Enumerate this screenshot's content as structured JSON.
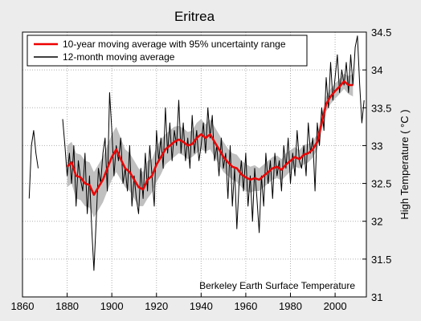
{
  "chart_data": {
    "type": "line",
    "title": "Eritrea",
    "xlabel": "",
    "ylabel": "High Temperature ( °C )",
    "xlim": [
      1860,
      2014
    ],
    "ylim": [
      31,
      34.5
    ],
    "x_ticks": [
      1860,
      1880,
      1900,
      1920,
      1940,
      1960,
      1980,
      2000
    ],
    "y_ticks": [
      31,
      31.5,
      32,
      32.5,
      33,
      33.5,
      34,
      34.5
    ],
    "y_tick_labels": [
      "31",
      "31.5",
      "32",
      "32.5",
      "33",
      "33.5",
      "34",
      "34.5"
    ],
    "grid": true,
    "legend_position": "top-left",
    "annotation": "Berkeley Earth Surface Temperature",
    "colors": {
      "moving_avg_10yr": "#ee0000",
      "uncertainty": "#c0c0c0",
      "moving_avg_12mo": "#000000",
      "background": "#ececec",
      "plot_bg": "#ffffff"
    },
    "series": [
      {
        "name": "10-year moving average with 95% uncertainty range",
        "x": [
          1880,
          1882,
          1884,
          1886,
          1888,
          1890,
          1892,
          1894,
          1896,
          1898,
          1900,
          1902,
          1904,
          1906,
          1908,
          1910,
          1912,
          1914,
          1916,
          1918,
          1920,
          1922,
          1924,
          1926,
          1928,
          1930,
          1932,
          1934,
          1936,
          1938,
          1940,
          1942,
          1944,
          1946,
          1948,
          1950,
          1952,
          1954,
          1956,
          1958,
          1960,
          1962,
          1964,
          1966,
          1968,
          1970,
          1972,
          1974,
          1976,
          1978,
          1980,
          1982,
          1984,
          1986,
          1988,
          1990,
          1992,
          1994,
          1996,
          1998,
          2000,
          2002,
          2004,
          2006,
          2008
        ],
        "values": [
          32.72,
          32.78,
          32.6,
          32.58,
          32.5,
          32.48,
          32.35,
          32.45,
          32.55,
          32.7,
          32.85,
          32.95,
          32.82,
          32.7,
          32.65,
          32.55,
          32.45,
          32.42,
          32.55,
          32.6,
          32.75,
          32.85,
          32.95,
          33.0,
          33.05,
          33.08,
          33.05,
          33.0,
          33.02,
          33.1,
          33.15,
          33.1,
          33.15,
          33.05,
          32.95,
          32.85,
          32.78,
          32.72,
          32.7,
          32.62,
          32.58,
          32.55,
          32.57,
          32.55,
          32.6,
          32.65,
          32.7,
          32.72,
          32.68,
          32.75,
          32.8,
          32.85,
          32.82,
          32.88,
          32.9,
          32.95,
          33.05,
          33.3,
          33.55,
          33.65,
          33.72,
          33.78,
          33.85,
          33.8,
          33.8
        ],
        "lower": [
          32.45,
          32.5,
          32.3,
          32.28,
          32.2,
          32.18,
          32.05,
          32.15,
          32.25,
          32.4,
          32.55,
          32.65,
          32.55,
          32.45,
          32.4,
          32.3,
          32.2,
          32.2,
          32.3,
          32.38,
          32.52,
          32.62,
          32.75,
          32.8,
          32.85,
          32.9,
          32.87,
          32.82,
          32.85,
          32.9,
          32.95,
          32.92,
          32.95,
          32.85,
          32.75,
          32.65,
          32.6,
          32.55,
          32.52,
          32.45,
          32.4,
          32.38,
          32.4,
          32.4,
          32.45,
          32.5,
          32.55,
          32.57,
          32.54,
          32.6,
          32.66,
          32.72,
          32.7,
          32.75,
          32.78,
          32.84,
          32.95,
          33.2,
          33.45,
          33.55,
          33.62,
          33.68,
          33.75,
          33.68,
          33.65
        ],
        "upper": [
          33.0,
          33.05,
          32.9,
          32.88,
          32.8,
          32.78,
          32.65,
          32.75,
          32.85,
          33.0,
          33.15,
          33.25,
          33.1,
          32.95,
          32.9,
          32.8,
          32.7,
          32.65,
          32.8,
          32.82,
          32.98,
          33.08,
          33.15,
          33.2,
          33.25,
          33.26,
          33.23,
          33.18,
          33.2,
          33.3,
          33.35,
          33.28,
          33.35,
          33.25,
          33.15,
          33.05,
          32.96,
          32.9,
          32.88,
          32.8,
          32.76,
          32.72,
          32.74,
          32.7,
          32.75,
          32.8,
          32.85,
          32.87,
          32.82,
          32.9,
          32.94,
          32.98,
          32.94,
          33.01,
          33.02,
          33.06,
          33.15,
          33.4,
          33.65,
          33.75,
          33.82,
          33.88,
          33.95,
          33.92,
          33.95
        ]
      },
      {
        "name": "12-month moving average",
        "x": [
          1863,
          1864,
          1865,
          1866,
          1867,
          1878,
          1879,
          1880,
          1881,
          1882,
          1883,
          1884,
          1885,
          1886,
          1887,
          1888,
          1889,
          1890,
          1891,
          1892,
          1893,
          1894,
          1895,
          1896,
          1897,
          1898,
          1899,
          1900,
          1901,
          1902,
          1903,
          1904,
          1905,
          1906,
          1907,
          1908,
          1909,
          1910,
          1911,
          1912,
          1913,
          1914,
          1915,
          1916,
          1917,
          1918,
          1919,
          1920,
          1921,
          1922,
          1923,
          1924,
          1925,
          1926,
          1927,
          1928,
          1929,
          1930,
          1931,
          1932,
          1933,
          1934,
          1935,
          1936,
          1937,
          1938,
          1939,
          1940,
          1941,
          1942,
          1943,
          1944,
          1945,
          1946,
          1947,
          1948,
          1949,
          1950,
          1951,
          1952,
          1953,
          1954,
          1955,
          1956,
          1957,
          1958,
          1959,
          1960,
          1961,
          1962,
          1963,
          1964,
          1965,
          1966,
          1967,
          1968,
          1969,
          1970,
          1971,
          1972,
          1973,
          1974,
          1975,
          1976,
          1977,
          1978,
          1979,
          1980,
          1981,
          1982,
          1983,
          1984,
          1985,
          1986,
          1987,
          1988,
          1989,
          1990,
          1991,
          1992,
          1993,
          1994,
          1995,
          1996,
          1997,
          1998,
          1999,
          2000,
          2001,
          2002,
          2003,
          2004,
          2005,
          2006,
          2007,
          2008,
          2009,
          2010,
          2011,
          2012,
          2013
        ],
        "values": [
          32.3,
          33.0,
          33.2,
          32.9,
          32.7,
          33.35,
          33.0,
          32.6,
          32.9,
          32.5,
          33.0,
          32.2,
          32.8,
          32.55,
          32.4,
          32.9,
          32.1,
          32.6,
          31.9,
          31.35,
          32.0,
          32.7,
          32.5,
          32.9,
          33.1,
          32.4,
          33.7,
          33.2,
          32.6,
          33.0,
          32.8,
          33.1,
          32.5,
          32.7,
          32.4,
          33.0,
          32.2,
          32.6,
          32.3,
          32.1,
          32.7,
          32.3,
          32.9,
          32.4,
          33.0,
          32.6,
          32.2,
          33.2,
          32.8,
          33.1,
          32.7,
          33.5,
          32.9,
          33.3,
          32.8,
          33.2,
          33.0,
          33.6,
          32.9,
          33.3,
          32.8,
          33.1,
          32.7,
          33.4,
          32.9,
          33.2,
          32.8,
          33.0,
          33.3,
          32.9,
          33.5,
          33.1,
          33.4,
          32.8,
          33.0,
          32.6,
          33.1,
          32.7,
          32.9,
          32.3,
          33.0,
          32.2,
          32.7,
          31.9,
          32.5,
          32.8,
          32.4,
          32.9,
          32.2,
          32.6,
          32.0,
          32.7,
          32.3,
          31.85,
          32.6,
          32.2,
          32.9,
          32.5,
          32.8,
          32.3,
          32.9,
          32.6,
          32.8,
          32.4,
          33.0,
          32.7,
          33.1,
          32.5,
          32.9,
          32.6,
          33.2,
          32.8,
          32.7,
          33.0,
          32.6,
          33.3,
          32.9,
          33.1,
          32.4,
          33.3,
          33.0,
          33.5,
          33.2,
          33.9,
          33.5,
          34.1,
          33.6,
          33.9,
          34.2,
          33.7,
          34.0,
          33.8,
          34.1,
          33.7,
          34.2,
          33.8,
          34.3,
          34.45,
          33.8,
          33.3,
          33.6
        ]
      }
    ]
  }
}
